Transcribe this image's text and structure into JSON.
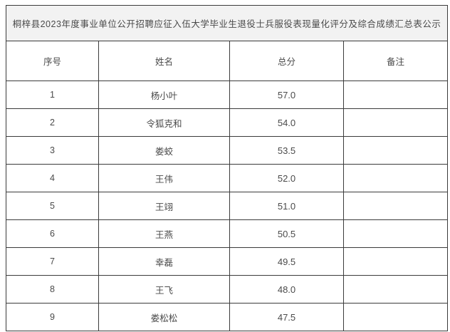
{
  "page": {
    "title": "桐梓县2023年度事业单位公开招聘应征入伍大学毕业生退役士兵服役表现量化评分及综合成绩汇总表公示"
  },
  "table": {
    "columns": {
      "seq": "序号",
      "name": "姓名",
      "score": "总分",
      "remark": "备注"
    },
    "rows": [
      {
        "seq": "1",
        "name": "杨小叶",
        "score": "57.0",
        "remark": ""
      },
      {
        "seq": "2",
        "name": "令狐克和",
        "score": "54.0",
        "remark": ""
      },
      {
        "seq": "3",
        "name": "娄蛟",
        "score": "53.5",
        "remark": ""
      },
      {
        "seq": "4",
        "name": "王伟",
        "score": "52.0",
        "remark": ""
      },
      {
        "seq": "5",
        "name": "王翊",
        "score": "51.0",
        "remark": ""
      },
      {
        "seq": "6",
        "name": "王燕",
        "score": "50.5",
        "remark": ""
      },
      {
        "seq": "7",
        "name": "幸磊",
        "score": "49.5",
        "remark": ""
      },
      {
        "seq": "8",
        "name": "王飞",
        "score": "48.0",
        "remark": ""
      },
      {
        "seq": "9",
        "name": "娄松松",
        "score": "47.5",
        "remark": ""
      }
    ],
    "colors": {
      "border": "#3b3b3b",
      "title_background": "#f2f2f2",
      "cell_background": "#ffffff",
      "text": "#4a4a4a"
    }
  }
}
